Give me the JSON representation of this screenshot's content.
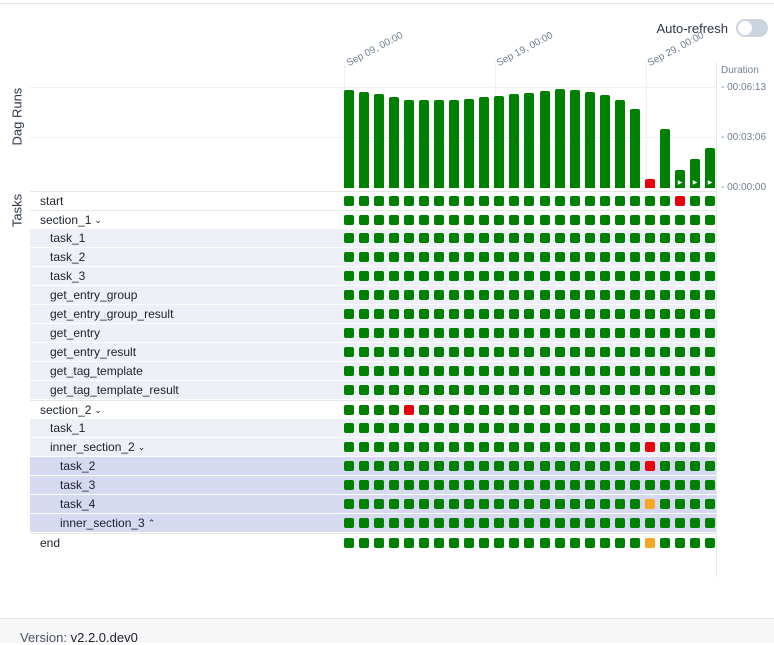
{
  "header": {
    "auto_refresh_label": "Auto-refresh",
    "auto_refresh_enabled": false
  },
  "labels": {
    "dag_runs": "Dag Runs",
    "tasks": "Tasks",
    "duration": "Duration"
  },
  "date_ticks": [
    "Sep 09, 00:00",
    "Sep 19, 00:00",
    "Sep 29, 00:00"
  ],
  "duration_ticks": [
    "- 00:06:13",
    "- 00:03:06",
    "- 00:00:00"
  ],
  "colors": {
    "success": "#008000",
    "failed": "#e8000b",
    "upstream_failed": "#f5a623"
  },
  "chart_data": {
    "type": "bar",
    "title": "Dag Runs",
    "ylabel": "Duration",
    "y_ticks": [
      "00:00:00",
      "00:03:06",
      "00:06:13"
    ],
    "ylim_seconds": [
      0,
      373
    ],
    "series": [
      {
        "name": "run duration (s)",
        "values": [
          367,
          357,
          352,
          340,
          330,
          330,
          330,
          330,
          332,
          338,
          342,
          352,
          356,
          360,
          371,
          367,
          358,
          348,
          330,
          295,
          33,
          220,
          68,
          110,
          150
        ],
        "states": [
          "success",
          "success",
          "success",
          "success",
          "success",
          "success",
          "success",
          "success",
          "success",
          "success",
          "success",
          "success",
          "success",
          "success",
          "success",
          "success",
          "success",
          "success",
          "success",
          "success",
          "failed",
          "success",
          "running",
          "running",
          "running"
        ]
      }
    ]
  },
  "tasks": [
    {
      "name": "start",
      "level": 0,
      "expand": "",
      "states": "SSSSSSSSSSSSSSSSSSSSSSFSS"
    },
    {
      "name": "section_1",
      "level": 0,
      "expand": "⌄",
      "states": "SSSSSSSSSSSSSSSSSSSSSSSSS"
    },
    {
      "name": "task_1",
      "level": 1,
      "expand": "",
      "states": "SSSSSSSSSSSSSSSSSSSSSSSSS"
    },
    {
      "name": "task_2",
      "level": 1,
      "expand": "",
      "states": "SSSSSSSSSSSSSSSSSSSSSSSSS"
    },
    {
      "name": "task_3",
      "level": 1,
      "expand": "",
      "states": "SSSSSSSSSSSSSSSSSSSSSSSSS"
    },
    {
      "name": "get_entry_group",
      "level": 1,
      "expand": "",
      "states": "SSSSSSSSSSSSSSSSSSSSSSSSS"
    },
    {
      "name": "get_entry_group_result",
      "level": 1,
      "expand": "",
      "states": "SSSSSSSSSSSSSSSSSSSSSSSSS"
    },
    {
      "name": "get_entry",
      "level": 1,
      "expand": "",
      "states": "SSSSSSSSSSSSSSSSSSSSSSSSS"
    },
    {
      "name": "get_entry_result",
      "level": 1,
      "expand": "",
      "states": "SSSSSSSSSSSSSSSSSSSSSSSSS"
    },
    {
      "name": "get_tag_template",
      "level": 1,
      "expand": "",
      "states": "SSSSSSSSSSSSSSSSSSSSSSSSS"
    },
    {
      "name": "get_tag_template_result",
      "level": 1,
      "expand": "",
      "states": "SSSSSSSSSSSSSSSSSSSSSSSSS"
    },
    {
      "name": "section_2",
      "level": 0,
      "expand": "⌄",
      "states": "SSSSFSSSSSSSSSSSSSSSSSSSS"
    },
    {
      "name": "task_1",
      "level": 1,
      "expand": "",
      "states": "SSSSSSSSSSSSSSSSSSSSSSSSS"
    },
    {
      "name": "inner_section_2",
      "level": 1,
      "expand": "⌄",
      "states": "SSSSSSSSSSSSSSSSSSSSFSSSS"
    },
    {
      "name": "task_2",
      "level": 2,
      "expand": "",
      "states": "SSSSSSSSSSSSSSSSSSSSFSSSS"
    },
    {
      "name": "task_3",
      "level": 2,
      "expand": "",
      "states": "SSSSSSSSSSSSSSSSSSSSSSSSS"
    },
    {
      "name": "task_4",
      "level": 2,
      "expand": "",
      "states": "SSSSSSSSSSSSSSSSSSSSUSSSS"
    },
    {
      "name": "inner_section_3",
      "level": 2,
      "expand": "⌃",
      "states": "SSSSSSSSSSSSSSSSSSSSSSSSS"
    },
    {
      "name": "end",
      "level": 0,
      "expand": "",
      "states": "SSSSSSSSSSSSSSSSSSSSUSSSS"
    }
  ],
  "footer": {
    "version_label": "Version:",
    "version_value": "v2.2.0.dev0"
  }
}
